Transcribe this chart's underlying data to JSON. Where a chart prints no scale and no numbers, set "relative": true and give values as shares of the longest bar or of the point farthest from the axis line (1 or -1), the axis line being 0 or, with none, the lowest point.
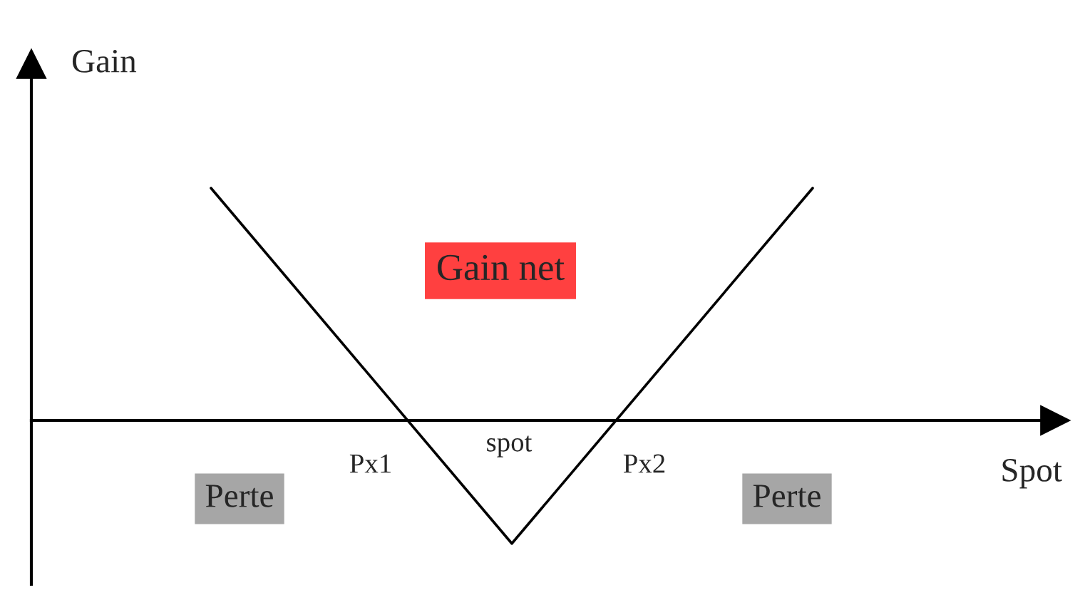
{
  "chart_data": {
    "type": "line",
    "relative": true,
    "xlabel": "Spot",
    "ylabel": "Gain",
    "categories": [
      null,
      null,
      null
    ],
    "series": [
      {
        "color": "#000000",
        "values": [
          1,
          -0.53,
          1
        ]
      }
    ],
    "annotations": [
      "Gain net",
      "Perte",
      "Perte",
      "Px1",
      "Px2",
      "spot"
    ],
    "grid": false,
    "legend": false,
    "marker": "none",
    "line_style": "solid"
  }
}
